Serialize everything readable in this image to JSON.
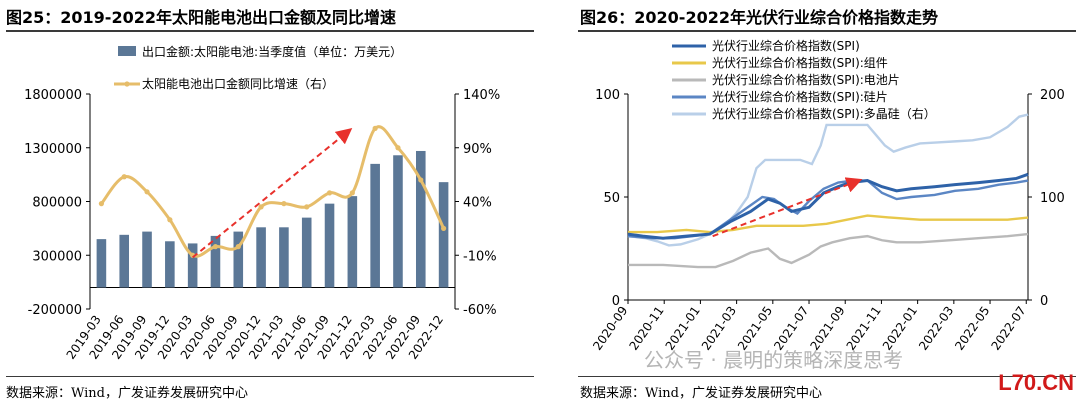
{
  "figures": [
    {
      "label": "图25：2019-2022年太阳能电池出口金额及同比增速",
      "source": "数据来源：Wind，广发证券发展研究中心"
    },
    {
      "label": "图26：2020-2022年光伏行业综合价格指数走势",
      "source": "数据来源：Wind，广发证券发展研究中心"
    }
  ],
  "watermark": "公众号 · 晨明的策略深度思考",
  "corner_logo": "L70.CN",
  "colors": {
    "bar": "#5b7796",
    "growth": "#e6bd6a",
    "arrow": "#e8312c",
    "spi": "#2e62a8",
    "module": "#e8c84a",
    "cell": "#b9b9b9",
    "wafer": "#5b86c4",
    "poly": "#b9cfe8"
  },
  "chart_data": [
    {
      "type": "bar",
      "categories": [
        "2019-03",
        "2019-06",
        "2019-09",
        "2019-12",
        "2020-03",
        "2020-06",
        "2020-09",
        "2020-12",
        "2021-03",
        "2021-06",
        "2021-09",
        "2021-12",
        "2022-03",
        "2022-06",
        "2022-09",
        "2022-12"
      ],
      "left_ticks": [
        "1800000",
        "1300000",
        "800000",
        "300000",
        "-200000"
      ],
      "right_ticks": [
        "140%",
        "90%",
        "40%",
        "-10%",
        "-60%"
      ],
      "ylim_left": [
        -200000,
        1800000
      ],
      "ylim_right": [
        -60,
        140
      ],
      "series": [
        {
          "name": "出口金额:太阳能电池:当季度值（单位：万美元）",
          "type": "bar",
          "values": [
            450000,
            490000,
            520000,
            430000,
            410000,
            480000,
            520000,
            560000,
            560000,
            650000,
            780000,
            850000,
            1150000,
            1230000,
            1270000,
            980000
          ]
        },
        {
          "name": "太阳能电池出口金额同比增速（右）",
          "type": "line",
          "axis": "right",
          "values": [
            38,
            63,
            49,
            23,
            -10,
            -2,
            -2,
            35,
            38,
            35,
            48,
            48,
            108,
            90,
            60,
            15
          ]
        }
      ],
      "trend_arrow": {
        "from_index": 4,
        "to_index": 12
      }
    },
    {
      "type": "line",
      "categories": [
        "2020-09",
        "2020-11",
        "2021-01",
        "2021-03",
        "2021-05",
        "2021-07",
        "2021-09",
        "2021-11",
        "2022-01",
        "2022-03",
        "2022-05",
        "2022-07"
      ],
      "left_ticks": [
        "100",
        "50",
        "0"
      ],
      "right_ticks": [
        "200",
        "100",
        "0"
      ],
      "ylim_left": [
        0,
        100
      ],
      "ylim_right": [
        0,
        200
      ],
      "series": [
        {
          "name": "光伏行业综合价格指数(SPI)",
          "points": [
            [
              0,
              32
            ],
            [
              5,
              31
            ],
            [
              12,
              30
            ],
            [
              20,
              31
            ],
            [
              28,
              32
            ],
            [
              35,
              38
            ],
            [
              42,
              43
            ],
            [
              48,
              49
            ],
            [
              52,
              47
            ],
            [
              56,
              43
            ],
            [
              62,
              45
            ],
            [
              67,
              52
            ],
            [
              72,
              55
            ],
            [
              76,
              57
            ],
            [
              82,
              58
            ],
            [
              87,
              55
            ],
            [
              92,
              53
            ],
            [
              97,
              54
            ],
            [
              105,
              55
            ],
            [
              112,
              56
            ],
            [
              120,
              57
            ],
            [
              127,
              58
            ],
            [
              133,
              59
            ],
            [
              137,
              61
            ]
          ]
        },
        {
          "name": "光伏行业综合价格指数(SPI):组件",
          "points": [
            [
              0,
              33
            ],
            [
              10,
              33
            ],
            [
              20,
              34
            ],
            [
              28,
              33
            ],
            [
              36,
              34
            ],
            [
              44,
              36
            ],
            [
              52,
              36
            ],
            [
              60,
              36
            ],
            [
              68,
              37
            ],
            [
              75,
              39
            ],
            [
              82,
              41
            ],
            [
              90,
              40
            ],
            [
              100,
              39
            ],
            [
              110,
              39
            ],
            [
              120,
              39
            ],
            [
              130,
              39
            ],
            [
              137,
              40
            ]
          ]
        },
        {
          "name": "光伏行业综合价格指数(SPI):电池片",
          "points": [
            [
              0,
              17
            ],
            [
              12,
              17
            ],
            [
              24,
              16
            ],
            [
              30,
              16
            ],
            [
              36,
              19
            ],
            [
              42,
              23
            ],
            [
              48,
              25
            ],
            [
              52,
              20
            ],
            [
              56,
              18
            ],
            [
              62,
              22
            ],
            [
              66,
              26
            ],
            [
              70,
              28
            ],
            [
              76,
              30
            ],
            [
              82,
              31
            ],
            [
              87,
              29
            ],
            [
              92,
              28
            ],
            [
              100,
              28
            ],
            [
              110,
              29
            ],
            [
              120,
              30
            ],
            [
              130,
              31
            ],
            [
              137,
              32
            ]
          ]
        },
        {
          "name": "光伏行业综合价格指数(SPI):硅片",
          "points": [
            [
              0,
              31
            ],
            [
              8,
              30
            ],
            [
              16,
              30
            ],
            [
              22,
              31
            ],
            [
              28,
              32
            ],
            [
              34,
              38
            ],
            [
              40,
              44
            ],
            [
              46,
              50
            ],
            [
              50,
              49
            ],
            [
              54,
              45
            ],
            [
              58,
              42
            ],
            [
              62,
              48
            ],
            [
              67,
              54
            ],
            [
              72,
              57
            ],
            [
              77,
              58
            ],
            [
              82,
              58
            ],
            [
              87,
              52
            ],
            [
              92,
              49
            ],
            [
              97,
              50
            ],
            [
              105,
              51
            ],
            [
              112,
              53
            ],
            [
              120,
              54
            ],
            [
              127,
              56
            ],
            [
              133,
              57
            ],
            [
              137,
              58
            ]
          ]
        },
        {
          "name": "光伏行业综合价格指数(SPI):多晶硅（右）",
          "axis": "right",
          "points": [
            [
              0,
              62
            ],
            [
              6,
              60
            ],
            [
              10,
              57
            ],
            [
              14,
              53
            ],
            [
              18,
              54
            ],
            [
              24,
              59
            ],
            [
              28,
              64
            ],
            [
              33,
              72
            ],
            [
              37,
              84
            ],
            [
              41,
              100
            ],
            [
              44,
              128
            ],
            [
              47,
              136
            ],
            [
              52,
              136
            ],
            [
              56,
              136
            ],
            [
              59,
              136
            ],
            [
              63,
              132
            ],
            [
              66,
              150
            ],
            [
              68,
              170
            ],
            [
              72,
              170
            ],
            [
              78,
              170
            ],
            [
              82,
              170
            ],
            [
              85,
              160
            ],
            [
              88,
              150
            ],
            [
              91,
              144
            ],
            [
              95,
              148
            ],
            [
              100,
              152
            ],
            [
              106,
              153
            ],
            [
              112,
              154
            ],
            [
              118,
              155
            ],
            [
              124,
              158
            ],
            [
              130,
              168
            ],
            [
              134,
              178
            ],
            [
              137,
              180
            ]
          ]
        }
      ],
      "trend_arrow": {
        "from_x": 29,
        "to_x": 79
      }
    }
  ]
}
